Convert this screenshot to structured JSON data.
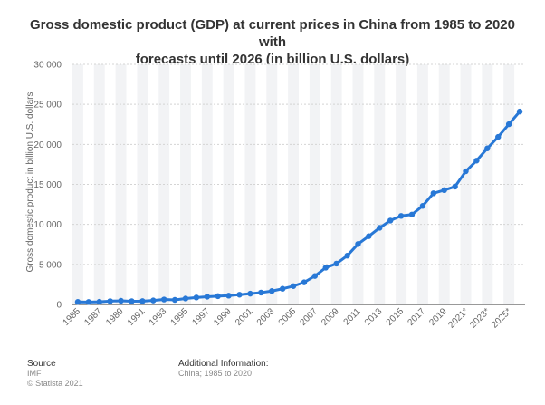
{
  "chart_data": {
    "type": "line",
    "title": "Gross domestic product (GDP) at current prices in China from 1985 to 2020 with forecasts until 2026 (in billion U.S. dollars)",
    "title_lines": [
      "Gross domestic product (GDP) at current prices in China from 1985 to 2020 with",
      "forecasts until 2026 (in billion U.S. dollars)"
    ],
    "xlabel": "",
    "ylabel": "Gross domestic product in billion U.S. dollars",
    "ylim": [
      0,
      30000
    ],
    "yticks": [
      0,
      5000,
      10000,
      15000,
      20000,
      25000,
      30000
    ],
    "ytick_labels": [
      "0",
      "5 000",
      "10 000",
      "15 000",
      "20 000",
      "25 000",
      "30 000"
    ],
    "x": [
      "1985",
      "1986",
      "1987",
      "1988",
      "1989",
      "1990",
      "1991",
      "1992",
      "1993",
      "1994",
      "1995",
      "1996",
      "1997",
      "1998",
      "1999",
      "2000",
      "2001",
      "2002",
      "2003",
      "2004",
      "2005",
      "2006",
      "2007",
      "2008",
      "2009",
      "2010",
      "2011",
      "2012",
      "2013",
      "2014",
      "2015",
      "2016",
      "2017",
      "2018",
      "2019",
      "2020",
      "2021*",
      "2022*",
      "2023*",
      "2024*",
      "2025*",
      "2026*"
    ],
    "xtick_labels_shown": [
      "1985",
      "1987",
      "1989",
      "1991",
      "1993",
      "1995",
      "1997",
      "1999",
      "2001",
      "2003",
      "2005",
      "2007",
      "2009",
      "2011",
      "2013",
      "2015",
      "2017",
      "2019",
      "2021*",
      "2023*",
      "2025*"
    ],
    "series": [
      {
        "name": "GDP",
        "color": "#2878d6",
        "values": [
          310,
          301,
          328,
          407,
          456,
          396,
          414,
          494,
          617,
          565,
          738,
          868,
          965,
          1034,
          1098,
          1214,
          1344,
          1478,
          1671,
          1955,
          2290,
          2760,
          3550,
          4590,
          5100,
          6090,
          7550,
          8530,
          9570,
          10480,
          11060,
          11230,
          12310,
          13890,
          14280,
          14720,
          16640,
          17970,
          19500,
          20930,
          22520,
          24100
        ]
      }
    ],
    "grid": true
  },
  "footer": {
    "source_heading": "Source",
    "source_name": "IMF",
    "copyright": "© Statista 2021",
    "additional_heading": "Additional Information:",
    "additional_text": "China; 1985 to 2020"
  },
  "colors": {
    "band": "#f2f3f5",
    "grid": "#d4d4d4",
    "axis": "#333333",
    "line": "#2878d6"
  }
}
